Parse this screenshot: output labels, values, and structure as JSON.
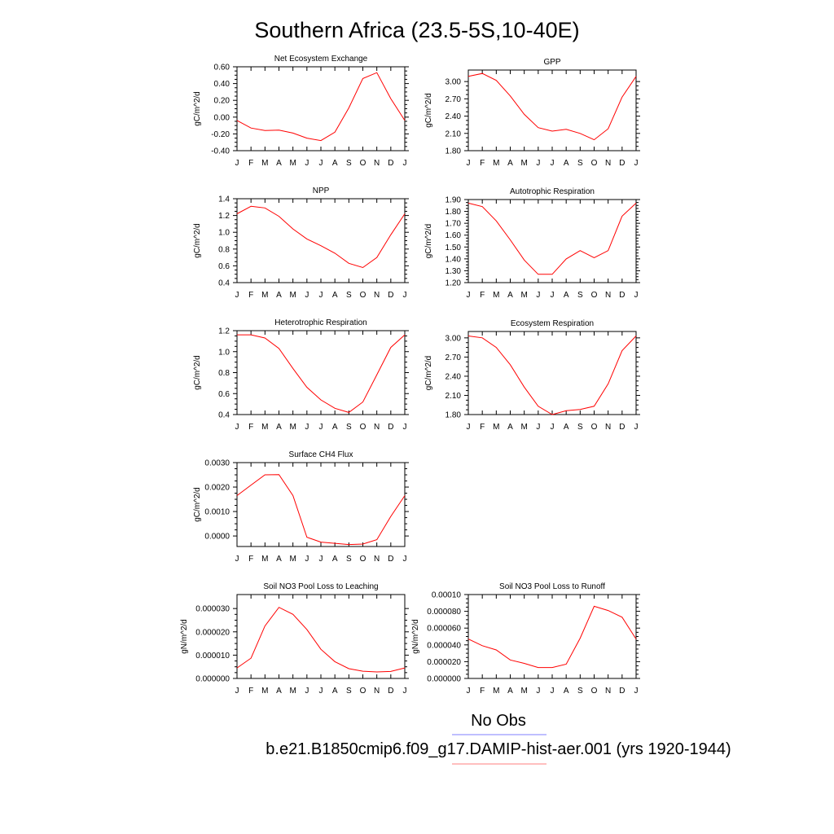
{
  "figure": {
    "title": "Southern Africa (23.5-5S,10-40E)",
    "legend": {
      "entries": [
        {
          "label": "No Obs",
          "color": "#7f7fff"
        },
        {
          "label": "b.e21.B1850cmip6.f09_g17.DAMIP-hist-aer.001 (yrs 1920-1944)",
          "color": "#ff7f7f"
        }
      ]
    },
    "colors": {
      "series": "#ff0000",
      "axis": "#000000"
    }
  },
  "chart_data": [
    {
      "type": "line",
      "title": "Net Ecosystem Exchange",
      "ylabel": "gC/m^2/d",
      "x": [
        "J",
        "F",
        "M",
        "A",
        "M",
        "J",
        "J",
        "A",
        "S",
        "O",
        "N",
        "D",
        "J"
      ],
      "ylim": [
        -0.4,
        0.6
      ],
      "yticks": [
        -0.4,
        -0.2,
        0.0,
        0.2,
        0.4,
        0.6
      ],
      "ytick_labels": [
        "-0.40",
        "-0.20",
        "0.00",
        "0.20",
        "0.40",
        "0.60"
      ],
      "series": [
        {
          "values": [
            -0.04,
            -0.13,
            -0.16,
            -0.155,
            -0.19,
            -0.25,
            -0.28,
            -0.18,
            0.11,
            0.46,
            0.53,
            0.22,
            -0.04
          ]
        }
      ]
    },
    {
      "type": "line",
      "title": "GPP",
      "ylabel": "gC/m^2/d",
      "x": [
        "J",
        "F",
        "M",
        "A",
        "M",
        "J",
        "J",
        "A",
        "S",
        "O",
        "N",
        "D",
        "J"
      ],
      "ylim": [
        1.8,
        3.2
      ],
      "yticks": [
        1.8,
        2.1,
        2.4,
        2.7,
        3.0
      ],
      "ytick_labels": [
        "1.80",
        "2.10",
        "2.40",
        "2.70",
        "3.00"
      ],
      "series": [
        {
          "values": [
            3.09,
            3.14,
            3.02,
            2.75,
            2.43,
            2.2,
            2.14,
            2.17,
            2.1,
            1.99,
            2.18,
            2.73,
            3.09
          ]
        }
      ]
    },
    {
      "type": "line",
      "title": "NPP",
      "ylabel": "gC/m^2/d",
      "x": [
        "J",
        "F",
        "M",
        "A",
        "M",
        "J",
        "J",
        "A",
        "S",
        "O",
        "N",
        "D",
        "J"
      ],
      "ylim": [
        0.4,
        1.4
      ],
      "yticks": [
        0.4,
        0.6,
        0.8,
        1.0,
        1.2,
        1.4
      ],
      "ytick_labels": [
        "0.4",
        "0.6",
        "0.8",
        "1.0",
        "1.2",
        "1.4"
      ],
      "series": [
        {
          "values": [
            1.22,
            1.31,
            1.29,
            1.19,
            1.04,
            0.92,
            0.84,
            0.75,
            0.63,
            0.58,
            0.7,
            0.97,
            1.22
          ]
        }
      ]
    },
    {
      "type": "line",
      "title": "Autotrophic Respiration",
      "ylabel": "gC/m^2/d",
      "x": [
        "J",
        "F",
        "M",
        "A",
        "M",
        "J",
        "J",
        "A",
        "S",
        "O",
        "N",
        "D",
        "J"
      ],
      "ylim": [
        1.2,
        1.9
      ],
      "yticks": [
        1.2,
        1.3,
        1.4,
        1.5,
        1.6,
        1.7,
        1.8,
        1.9
      ],
      "ytick_labels": [
        "1.20",
        "1.30",
        "1.40",
        "1.50",
        "1.60",
        "1.70",
        "1.80",
        "1.90"
      ],
      "series": [
        {
          "values": [
            1.87,
            1.84,
            1.72,
            1.56,
            1.39,
            1.27,
            1.27,
            1.4,
            1.47,
            1.41,
            1.47,
            1.76,
            1.87
          ]
        }
      ]
    },
    {
      "type": "line",
      "title": "Heterotrophic Respiration",
      "ylabel": "gC/m^2/d",
      "x": [
        "J",
        "F",
        "M",
        "A",
        "M",
        "J",
        "J",
        "A",
        "S",
        "O",
        "N",
        "D",
        "J"
      ],
      "ylim": [
        0.4,
        1.2
      ],
      "yticks": [
        0.4,
        0.6,
        0.8,
        1.0,
        1.2
      ],
      "ytick_labels": [
        "0.4",
        "0.6",
        "0.8",
        "1.0",
        "1.2"
      ],
      "series": [
        {
          "values": [
            1.16,
            1.16,
            1.13,
            1.03,
            0.84,
            0.66,
            0.54,
            0.46,
            0.42,
            0.52,
            0.78,
            1.04,
            1.16
          ]
        }
      ]
    },
    {
      "type": "line",
      "title": "Ecosystem Respiration",
      "ylabel": "gC/m^2/d",
      "x": [
        "J",
        "F",
        "M",
        "A",
        "M",
        "J",
        "J",
        "A",
        "S",
        "O",
        "N",
        "D",
        "J"
      ],
      "ylim": [
        1.8,
        3.1
      ],
      "yticks": [
        1.8,
        2.1,
        2.4,
        2.7,
        3.0
      ],
      "ytick_labels": [
        "1.80",
        "2.10",
        "2.40",
        "2.70",
        "3.00"
      ],
      "series": [
        {
          "values": [
            3.03,
            3.0,
            2.85,
            2.58,
            2.23,
            1.93,
            1.8,
            1.86,
            1.88,
            1.93,
            2.28,
            2.8,
            3.03
          ]
        }
      ]
    },
    {
      "type": "line",
      "title": "Surface CH4 Flux",
      "ylabel": "gC/m^2/d",
      "x": [
        "J",
        "F",
        "M",
        "A",
        "M",
        "J",
        "J",
        "A",
        "S",
        "O",
        "N",
        "D",
        "J"
      ],
      "ylim": [
        -0.00043,
        0.003
      ],
      "yticks": [
        0.0,
        0.001,
        0.002,
        0.003
      ],
      "ytick_labels": [
        "0.0000",
        "0.0010",
        "0.0020",
        "0.0030"
      ],
      "series": [
        {
          "values": [
            0.00165,
            0.00208,
            0.0025,
            0.00251,
            0.00165,
            -5e-05,
            -0.00025,
            -0.0003,
            -0.00035,
            -0.00033,
            -0.00015,
            0.0008,
            0.00165
          ]
        }
      ]
    },
    {
      "type": "line",
      "title": "Soil NO3 Pool Loss to Leaching",
      "ylabel": "gN/m^2/d",
      "x": [
        "J",
        "F",
        "M",
        "A",
        "M",
        "J",
        "J",
        "A",
        "S",
        "O",
        "N",
        "D",
        "J"
      ],
      "ylim": [
        0.0,
        3.6e-05
      ],
      "yticks": [
        0.0,
        1e-05,
        2e-05,
        3e-05
      ],
      "ytick_labels": [
        "0.000000",
        "0.000010",
        "0.000020",
        "0.000030"
      ],
      "series": [
        {
          "values": [
            4.5e-06,
            8.7e-06,
            2.25e-05,
            3.05e-05,
            2.75e-05,
            2.1e-05,
            1.25e-05,
            7.2e-06,
            4.2e-06,
            3.1e-06,
            2.8e-06,
            3e-06,
            4.5e-06
          ]
        }
      ]
    },
    {
      "type": "line",
      "title": "Soil NO3 Pool Loss to Runoff",
      "ylabel": "gN/m^2/d",
      "x": [
        "J",
        "F",
        "M",
        "A",
        "M",
        "J",
        "J",
        "A",
        "S",
        "O",
        "N",
        "D",
        "J"
      ],
      "ylim": [
        0.0,
        0.0001
      ],
      "yticks": [
        0.0,
        2e-05,
        4e-05,
        6e-05,
        8e-05,
        0.0001
      ],
      "ytick_labels": [
        "0.000000",
        "0.000020",
        "0.000040",
        "0.000060",
        "0.000080",
        "0.00010"
      ],
      "series": [
        {
          "values": [
            4.7e-05,
            3.9e-05,
            3.4e-05,
            2.2e-05,
            1.8e-05,
            1.3e-05,
            1.3e-05,
            1.7e-05,
            4.8e-05,
            8.6e-05,
            8.1e-05,
            7.3e-05,
            4.7e-05
          ]
        }
      ]
    }
  ]
}
